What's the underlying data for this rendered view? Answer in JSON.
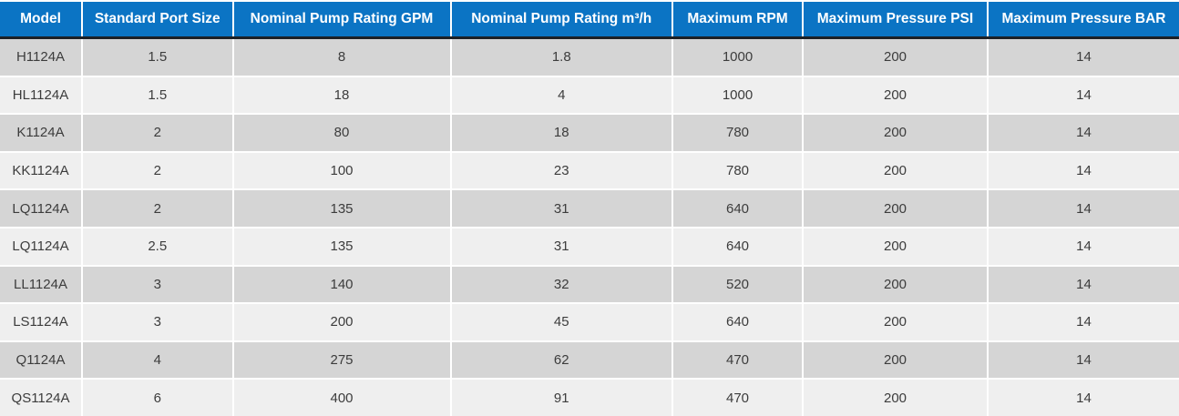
{
  "table": {
    "columns": [
      "Model",
      "Standard Port Size",
      "Nominal Pump Rating GPM",
      "Nominal Pump Rating m³/h",
      "Maximum RPM",
      "Maximum Pressure PSI",
      "Maximum Pressure BAR"
    ],
    "rows": [
      [
        "H1124A",
        "1.5",
        "8",
        "1.8",
        "1000",
        "200",
        "14"
      ],
      [
        "HL1124A",
        "1.5",
        "18",
        "4",
        "1000",
        "200",
        "14"
      ],
      [
        "K1124A",
        "2",
        "80",
        "18",
        "780",
        "200",
        "14"
      ],
      [
        "KK1124A",
        "2",
        "100",
        "23",
        "780",
        "200",
        "14"
      ],
      [
        "LQ1124A",
        "2",
        "135",
        "31",
        "640",
        "200",
        "14"
      ],
      [
        "LQ1124A",
        "2.5",
        "135",
        "31",
        "640",
        "200",
        "14"
      ],
      [
        "LL1124A",
        "3",
        "140",
        "32",
        "520",
        "200",
        "14"
      ],
      [
        "LS1124A",
        "3",
        "200",
        "45",
        "640",
        "200",
        "14"
      ],
      [
        "Q1124A",
        "4",
        "275",
        "62",
        "470",
        "200",
        "14"
      ],
      [
        "QS1124A",
        "6",
        "400",
        "91",
        "470",
        "200",
        "14"
      ]
    ],
    "colors": {
      "header_bg": "#0b74c4",
      "header_text": "#ffffff",
      "header_border": "#1c2025",
      "row_odd_bg": "#d5d5d5",
      "row_even_bg": "#efefef",
      "body_text": "#3c3c3c",
      "separator": "#ffffff"
    }
  }
}
